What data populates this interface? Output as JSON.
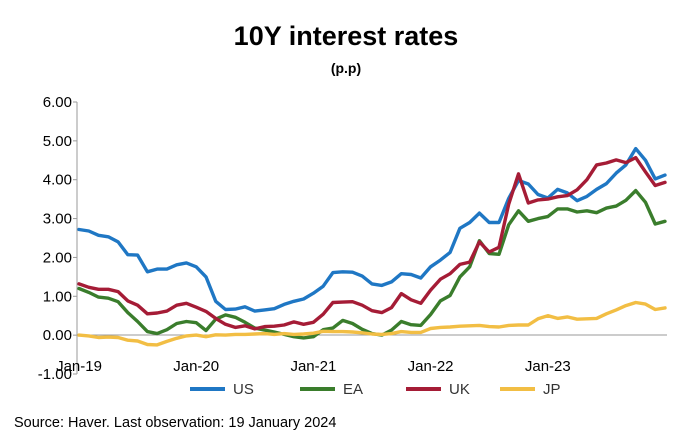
{
  "chart_data": {
    "type": "line",
    "title": "10Y interest rates",
    "subtitle": "(p.p)",
    "xlabel": "",
    "ylabel": "",
    "ylim": [
      -1,
      6
    ],
    "y_ticks": [
      "6.00",
      "5.00",
      "4.00",
      "3.00",
      "2.00",
      "1.00",
      "0.00",
      "-1.00"
    ],
    "x_ticks": [
      "Jan-19",
      "Jan-20",
      "Jan-21",
      "Jan-22",
      "Jan-23"
    ],
    "x_tick_index": [
      0,
      12,
      24,
      36,
      48
    ],
    "grid": false,
    "legend_position": "bottom",
    "source": "Source: Haver. Last observation: 19 January 2024",
    "x": [
      "Jan-19",
      "Feb-19",
      "Mar-19",
      "Apr-19",
      "May-19",
      "Jun-19",
      "Jul-19",
      "Aug-19",
      "Sep-19",
      "Oct-19",
      "Nov-19",
      "Dec-19",
      "Jan-20",
      "Feb-20",
      "Mar-20",
      "Apr-20",
      "May-20",
      "Jun-20",
      "Jul-20",
      "Aug-20",
      "Sep-20",
      "Oct-20",
      "Nov-20",
      "Dec-20",
      "Jan-21",
      "Feb-21",
      "Mar-21",
      "Apr-21",
      "May-21",
      "Jun-21",
      "Jul-21",
      "Aug-21",
      "Sep-21",
      "Oct-21",
      "Nov-21",
      "Dec-21",
      "Jan-22",
      "Feb-22",
      "Mar-22",
      "Apr-22",
      "May-22",
      "Jun-22",
      "Jul-22",
      "Aug-22",
      "Sep-22",
      "Oct-22",
      "Nov-22",
      "Dec-22",
      "Jan-23",
      "Feb-23",
      "Mar-23",
      "Apr-23",
      "May-23",
      "Jun-23",
      "Jul-23",
      "Aug-23",
      "Sep-23",
      "Oct-23",
      "Nov-23",
      "Dec-23",
      "Jan-24"
    ],
    "series": [
      {
        "name": "US",
        "color": "#1f77c4",
        "values": [
          2.72,
          2.68,
          2.57,
          2.53,
          2.4,
          2.07,
          2.06,
          1.63,
          1.7,
          1.7,
          1.81,
          1.86,
          1.76,
          1.5,
          0.87,
          0.66,
          0.67,
          0.73,
          0.62,
          0.65,
          0.68,
          0.79,
          0.87,
          0.93,
          1.08,
          1.26,
          1.61,
          1.63,
          1.62,
          1.52,
          1.32,
          1.28,
          1.37,
          1.58,
          1.56,
          1.47,
          1.76,
          1.93,
          2.13,
          2.75,
          2.9,
          3.14,
          2.9,
          2.9,
          3.52,
          3.98,
          3.89,
          3.62,
          3.53,
          3.75,
          3.66,
          3.46,
          3.57,
          3.75,
          3.9,
          4.17,
          4.38,
          4.8,
          4.5,
          4.02,
          4.12
        ]
      },
      {
        "name": "EA",
        "color": "#3a7d2c",
        "values": [
          1.2,
          1.1,
          0.98,
          0.95,
          0.86,
          0.58,
          0.35,
          0.09,
          0.04,
          0.14,
          0.3,
          0.35,
          0.32,
          0.12,
          0.41,
          0.52,
          0.46,
          0.33,
          0.18,
          0.13,
          0.08,
          0.02,
          -0.04,
          -0.07,
          -0.04,
          0.14,
          0.18,
          0.38,
          0.3,
          0.15,
          0.04,
          0.0,
          0.13,
          0.35,
          0.27,
          0.25,
          0.53,
          0.88,
          1.02,
          1.5,
          1.76,
          2.43,
          2.1,
          2.08,
          2.84,
          3.2,
          2.93,
          3.0,
          3.05,
          3.25,
          3.25,
          3.17,
          3.2,
          3.15,
          3.27,
          3.32,
          3.47,
          3.72,
          3.42,
          2.86,
          2.93
        ]
      },
      {
        "name": "UK",
        "color": "#a51c36",
        "values": [
          1.32,
          1.23,
          1.18,
          1.18,
          1.12,
          0.88,
          0.77,
          0.55,
          0.57,
          0.62,
          0.77,
          0.82,
          0.72,
          0.61,
          0.43,
          0.28,
          0.2,
          0.24,
          0.16,
          0.22,
          0.23,
          0.26,
          0.34,
          0.28,
          0.33,
          0.54,
          0.84,
          0.85,
          0.86,
          0.77,
          0.63,
          0.58,
          0.71,
          1.07,
          0.91,
          0.82,
          1.16,
          1.44,
          1.58,
          1.82,
          1.88,
          2.4,
          2.14,
          2.26,
          3.37,
          4.15,
          3.4,
          3.48,
          3.5,
          3.56,
          3.59,
          3.74,
          4.0,
          4.38,
          4.43,
          4.51,
          4.44,
          4.57,
          4.2,
          3.85,
          3.93
        ]
      },
      {
        "name": "JP",
        "color": "#f2be44",
        "values": [
          0.0,
          -0.02,
          -0.06,
          -0.05,
          -0.06,
          -0.13,
          -0.15,
          -0.24,
          -0.25,
          -0.16,
          -0.08,
          -0.02,
          0.0,
          -0.04,
          0.01,
          0.0,
          0.02,
          0.02,
          0.03,
          0.04,
          0.02,
          0.04,
          0.02,
          0.03,
          0.05,
          0.1,
          0.09,
          0.09,
          0.08,
          0.06,
          0.03,
          0.02,
          0.04,
          0.09,
          0.07,
          0.07,
          0.17,
          0.2,
          0.21,
          0.23,
          0.24,
          0.25,
          0.22,
          0.21,
          0.25,
          0.26,
          0.26,
          0.42,
          0.5,
          0.43,
          0.47,
          0.41,
          0.42,
          0.43,
          0.55,
          0.65,
          0.76,
          0.84,
          0.8,
          0.66,
          0.7
        ]
      }
    ]
  }
}
